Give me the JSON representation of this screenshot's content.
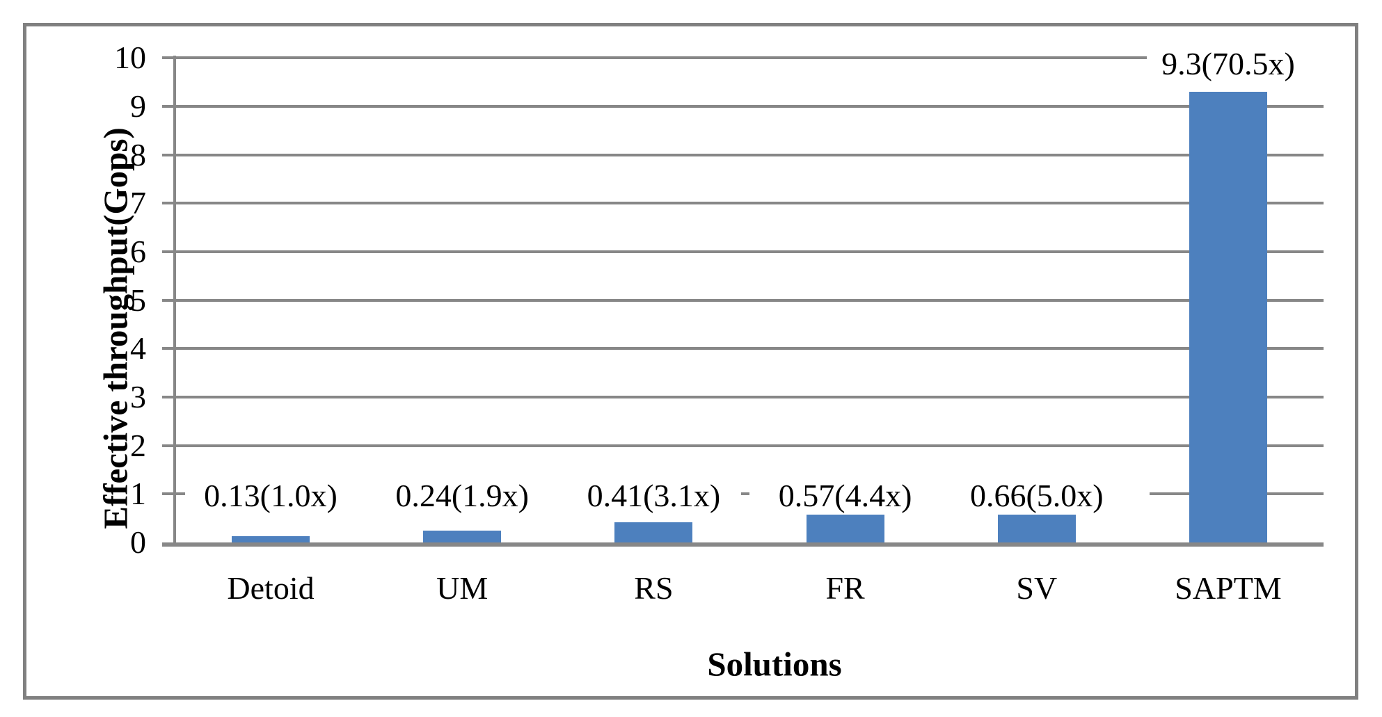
{
  "chart_data": {
    "type": "bar",
    "title": "",
    "xlabel": "Solutions",
    "ylabel": "Effective throughput(Gops)",
    "categories": [
      "Detoid",
      "UM",
      "RS",
      "FR",
      "SV",
      "SAPTM"
    ],
    "values": [
      0.13,
      0.24,
      0.41,
      0.57,
      0.66,
      9.3
    ],
    "data_labels": [
      "0.13(1.0x)",
      "0.24(1.9x)",
      "0.41(3.1x)",
      "0.57(4.4x)",
      "0.66(5.0x)",
      "9.3(70.5x)"
    ],
    "ylim": [
      0,
      10
    ],
    "ytick_step": 1,
    "ytick_labels": [
      "0",
      "1",
      "2",
      "3",
      "4",
      "5",
      "6",
      "7",
      "8",
      "9",
      "10"
    ],
    "grid": "horizontal-major",
    "legend": "none",
    "colors": {
      "bar_fill": "#4D80BE",
      "gridline": "#878787",
      "axis_line": "#878787",
      "frame_border": "#808080",
      "text": "#000000",
      "background": "#FFFFFF"
    }
  }
}
